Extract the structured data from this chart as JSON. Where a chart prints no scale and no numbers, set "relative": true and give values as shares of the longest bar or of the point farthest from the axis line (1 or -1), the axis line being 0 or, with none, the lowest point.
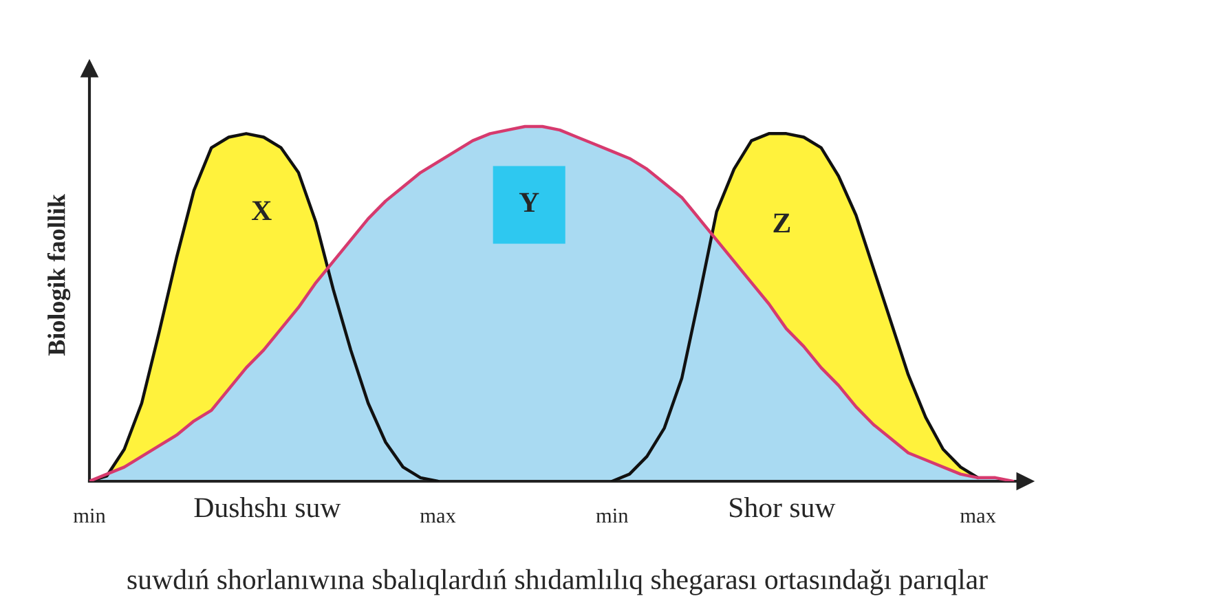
{
  "chart_data": {
    "type": "area",
    "relative": true,
    "ylabel": "Biologik faollik",
    "xlabel": "suwdıń shorlanıwına sbalıqlardıń shıdamlılıq shegarası ortasındağı parıqlar",
    "categories": [
      "min",
      null,
      null,
      null,
      null,
      null,
      null,
      null,
      null,
      null,
      null,
      null,
      null,
      null,
      null,
      null,
      null,
      null,
      null,
      null,
      "max",
      null,
      null,
      null,
      null,
      null,
      null,
      null,
      null,
      null,
      "min",
      null,
      null,
      null,
      null,
      null,
      null,
      null,
      null,
      null,
      null,
      null,
      null,
      null,
      null,
      null,
      null,
      null,
      null,
      null,
      null,
      "max",
      null,
      null
    ],
    "series": [
      {
        "color": "#fff23c",
        "values": [
          0,
          0.015,
          0.09,
          0.22,
          0.42,
          0.63,
          0.82,
          0.94,
          0.97,
          0.98,
          0.97,
          0.94,
          0.87,
          0.73,
          0.54,
          0.37,
          0.22,
          0.11,
          0.04,
          0.01,
          0,
          null,
          null,
          null,
          null,
          null,
          null,
          null,
          null,
          null,
          null,
          null,
          null,
          null,
          null,
          null,
          null,
          null,
          null,
          null,
          null,
          null,
          null,
          null,
          null,
          null,
          null,
          null,
          null,
          null,
          null,
          null,
          null,
          null
        ]
      },
      {
        "color": "#fff23c",
        "values": [
          null,
          null,
          null,
          null,
          null,
          null,
          null,
          null,
          null,
          null,
          null,
          null,
          null,
          null,
          null,
          null,
          null,
          null,
          null,
          null,
          null,
          null,
          null,
          null,
          null,
          null,
          null,
          null,
          null,
          null,
          0,
          0.02,
          0.07,
          0.15,
          0.29,
          0.52,
          0.76,
          0.88,
          0.96,
          0.98,
          0.98,
          0.97,
          0.94,
          0.86,
          0.75,
          0.6,
          0.45,
          0.3,
          0.18,
          0.09,
          0.04,
          0.01,
          null,
          null
        ]
      },
      {
        "color": "#a9daf2",
        "values": [
          0,
          0.02,
          0.04,
          0.07,
          0.1,
          0.13,
          0.17,
          0.2,
          0.26,
          0.32,
          0.37,
          0.43,
          0.49,
          0.56,
          0.62,
          0.68,
          0.74,
          0.79,
          0.83,
          0.87,
          0.9,
          0.93,
          0.96,
          0.98,
          0.99,
          1,
          1,
          0.99,
          0.97,
          0.95,
          0.93,
          0.91,
          0.88,
          0.84,
          0.8,
          0.74,
          0.68,
          0.62,
          0.56,
          0.5,
          0.43,
          0.38,
          0.32,
          0.27,
          0.21,
          0.16,
          0.12,
          0.08,
          0.06,
          0.04,
          0.02,
          0.01,
          0.01,
          0
        ]
      }
    ],
    "annotations": [
      "X",
      "Y",
      "Z",
      "Dushshı suw",
      "Shor suw"
    ]
  }
}
